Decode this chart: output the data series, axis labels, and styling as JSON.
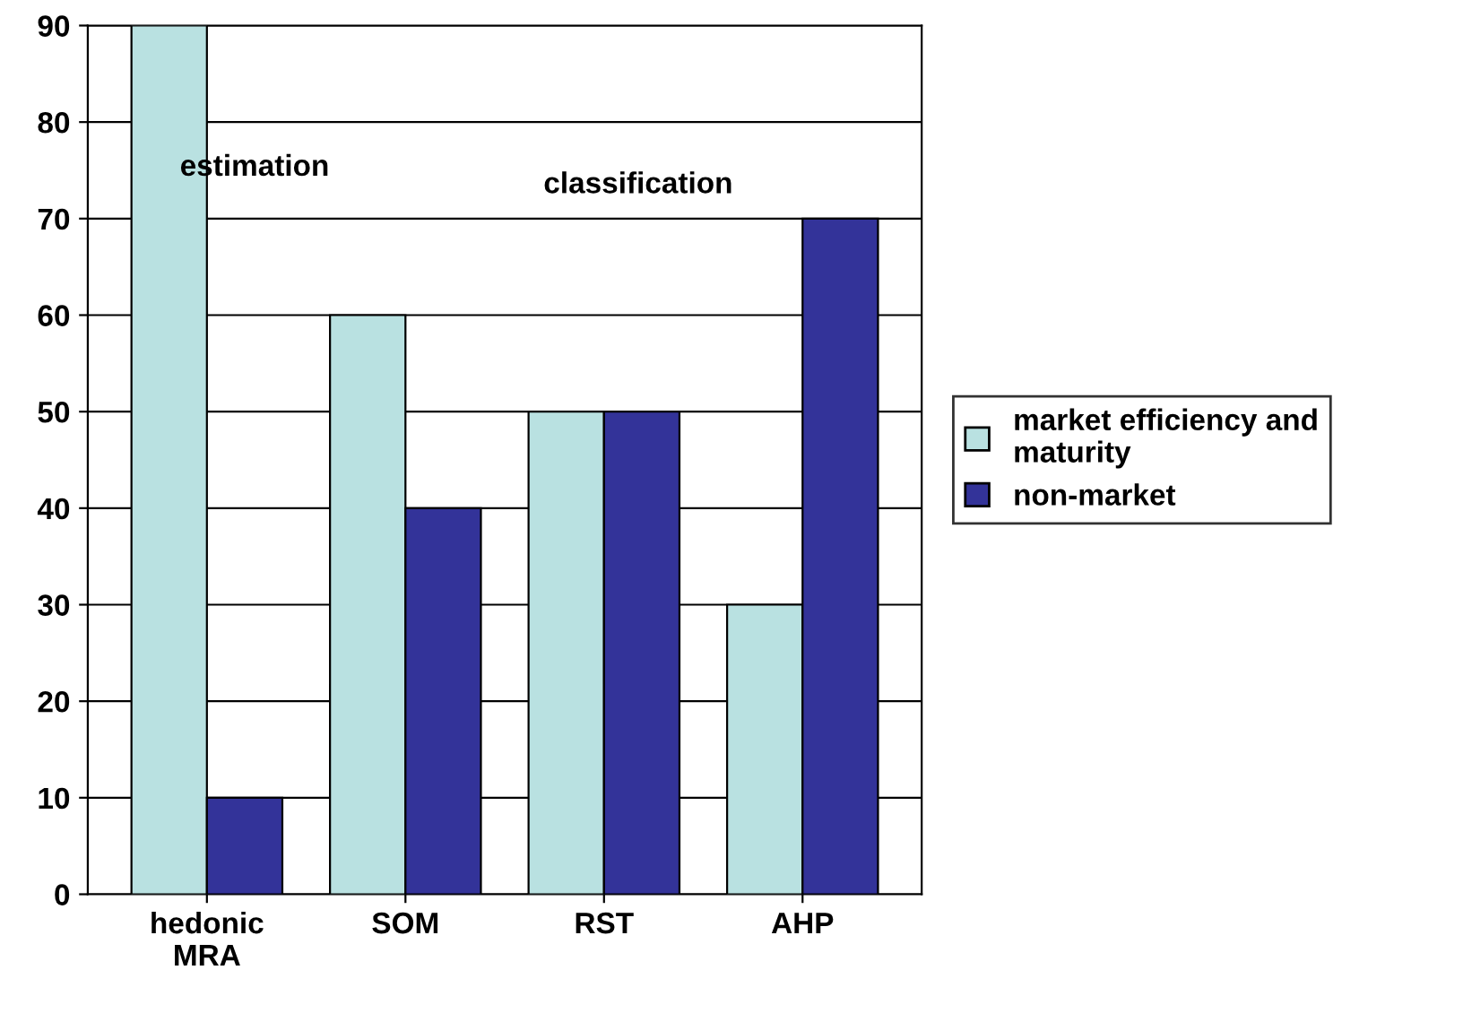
{
  "chart_data": {
    "type": "bar",
    "categories": [
      "hedonic\nMRA",
      "SOM",
      "RST",
      "AHP"
    ],
    "series": [
      {
        "name": "market efficiency and\nmaturity",
        "color": "#b9e1e1",
        "values": [
          90,
          60,
          50,
          30
        ]
      },
      {
        "name": "non-market",
        "color": "#333399",
        "values": [
          10,
          40,
          50,
          70
        ]
      }
    ],
    "ylim": [
      0,
      90
    ],
    "yticks": [
      0,
      10,
      20,
      30,
      40,
      50,
      60,
      70,
      80,
      90
    ],
    "grid": "y",
    "legend": "right",
    "annotations": [
      "estimation",
      "classification"
    ]
  }
}
